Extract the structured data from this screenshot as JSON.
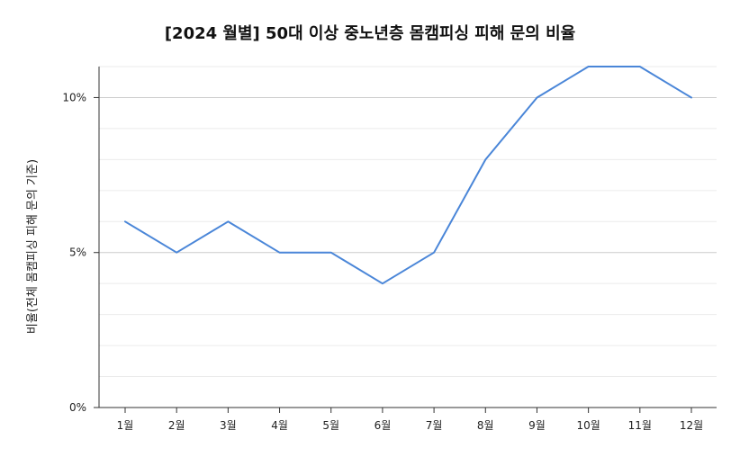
{
  "chart_data": {
    "type": "line",
    "title": "[2024 월별] 50대 이상 중노년층 몸캠피싱 피해 문의 비율",
    "xlabel": "",
    "ylabel": "비율(전체 몸캠피싱 피해 문의 기준)",
    "categories": [
      "1월",
      "2월",
      "3월",
      "4월",
      "5월",
      "6월",
      "7월",
      "8월",
      "9월",
      "10월",
      "11월",
      "12월"
    ],
    "series": [
      {
        "values": [
          6,
          5,
          6,
          5,
          5,
          4,
          5,
          8,
          10,
          11,
          11,
          10
        ],
        "color": "#4a86d8"
      }
    ],
    "ylim": [
      0,
      11
    ],
    "yticks": [
      0,
      5,
      10
    ],
    "ytick_labels": [
      "0%",
      "5%",
      "10%"
    ],
    "grid": true
  }
}
